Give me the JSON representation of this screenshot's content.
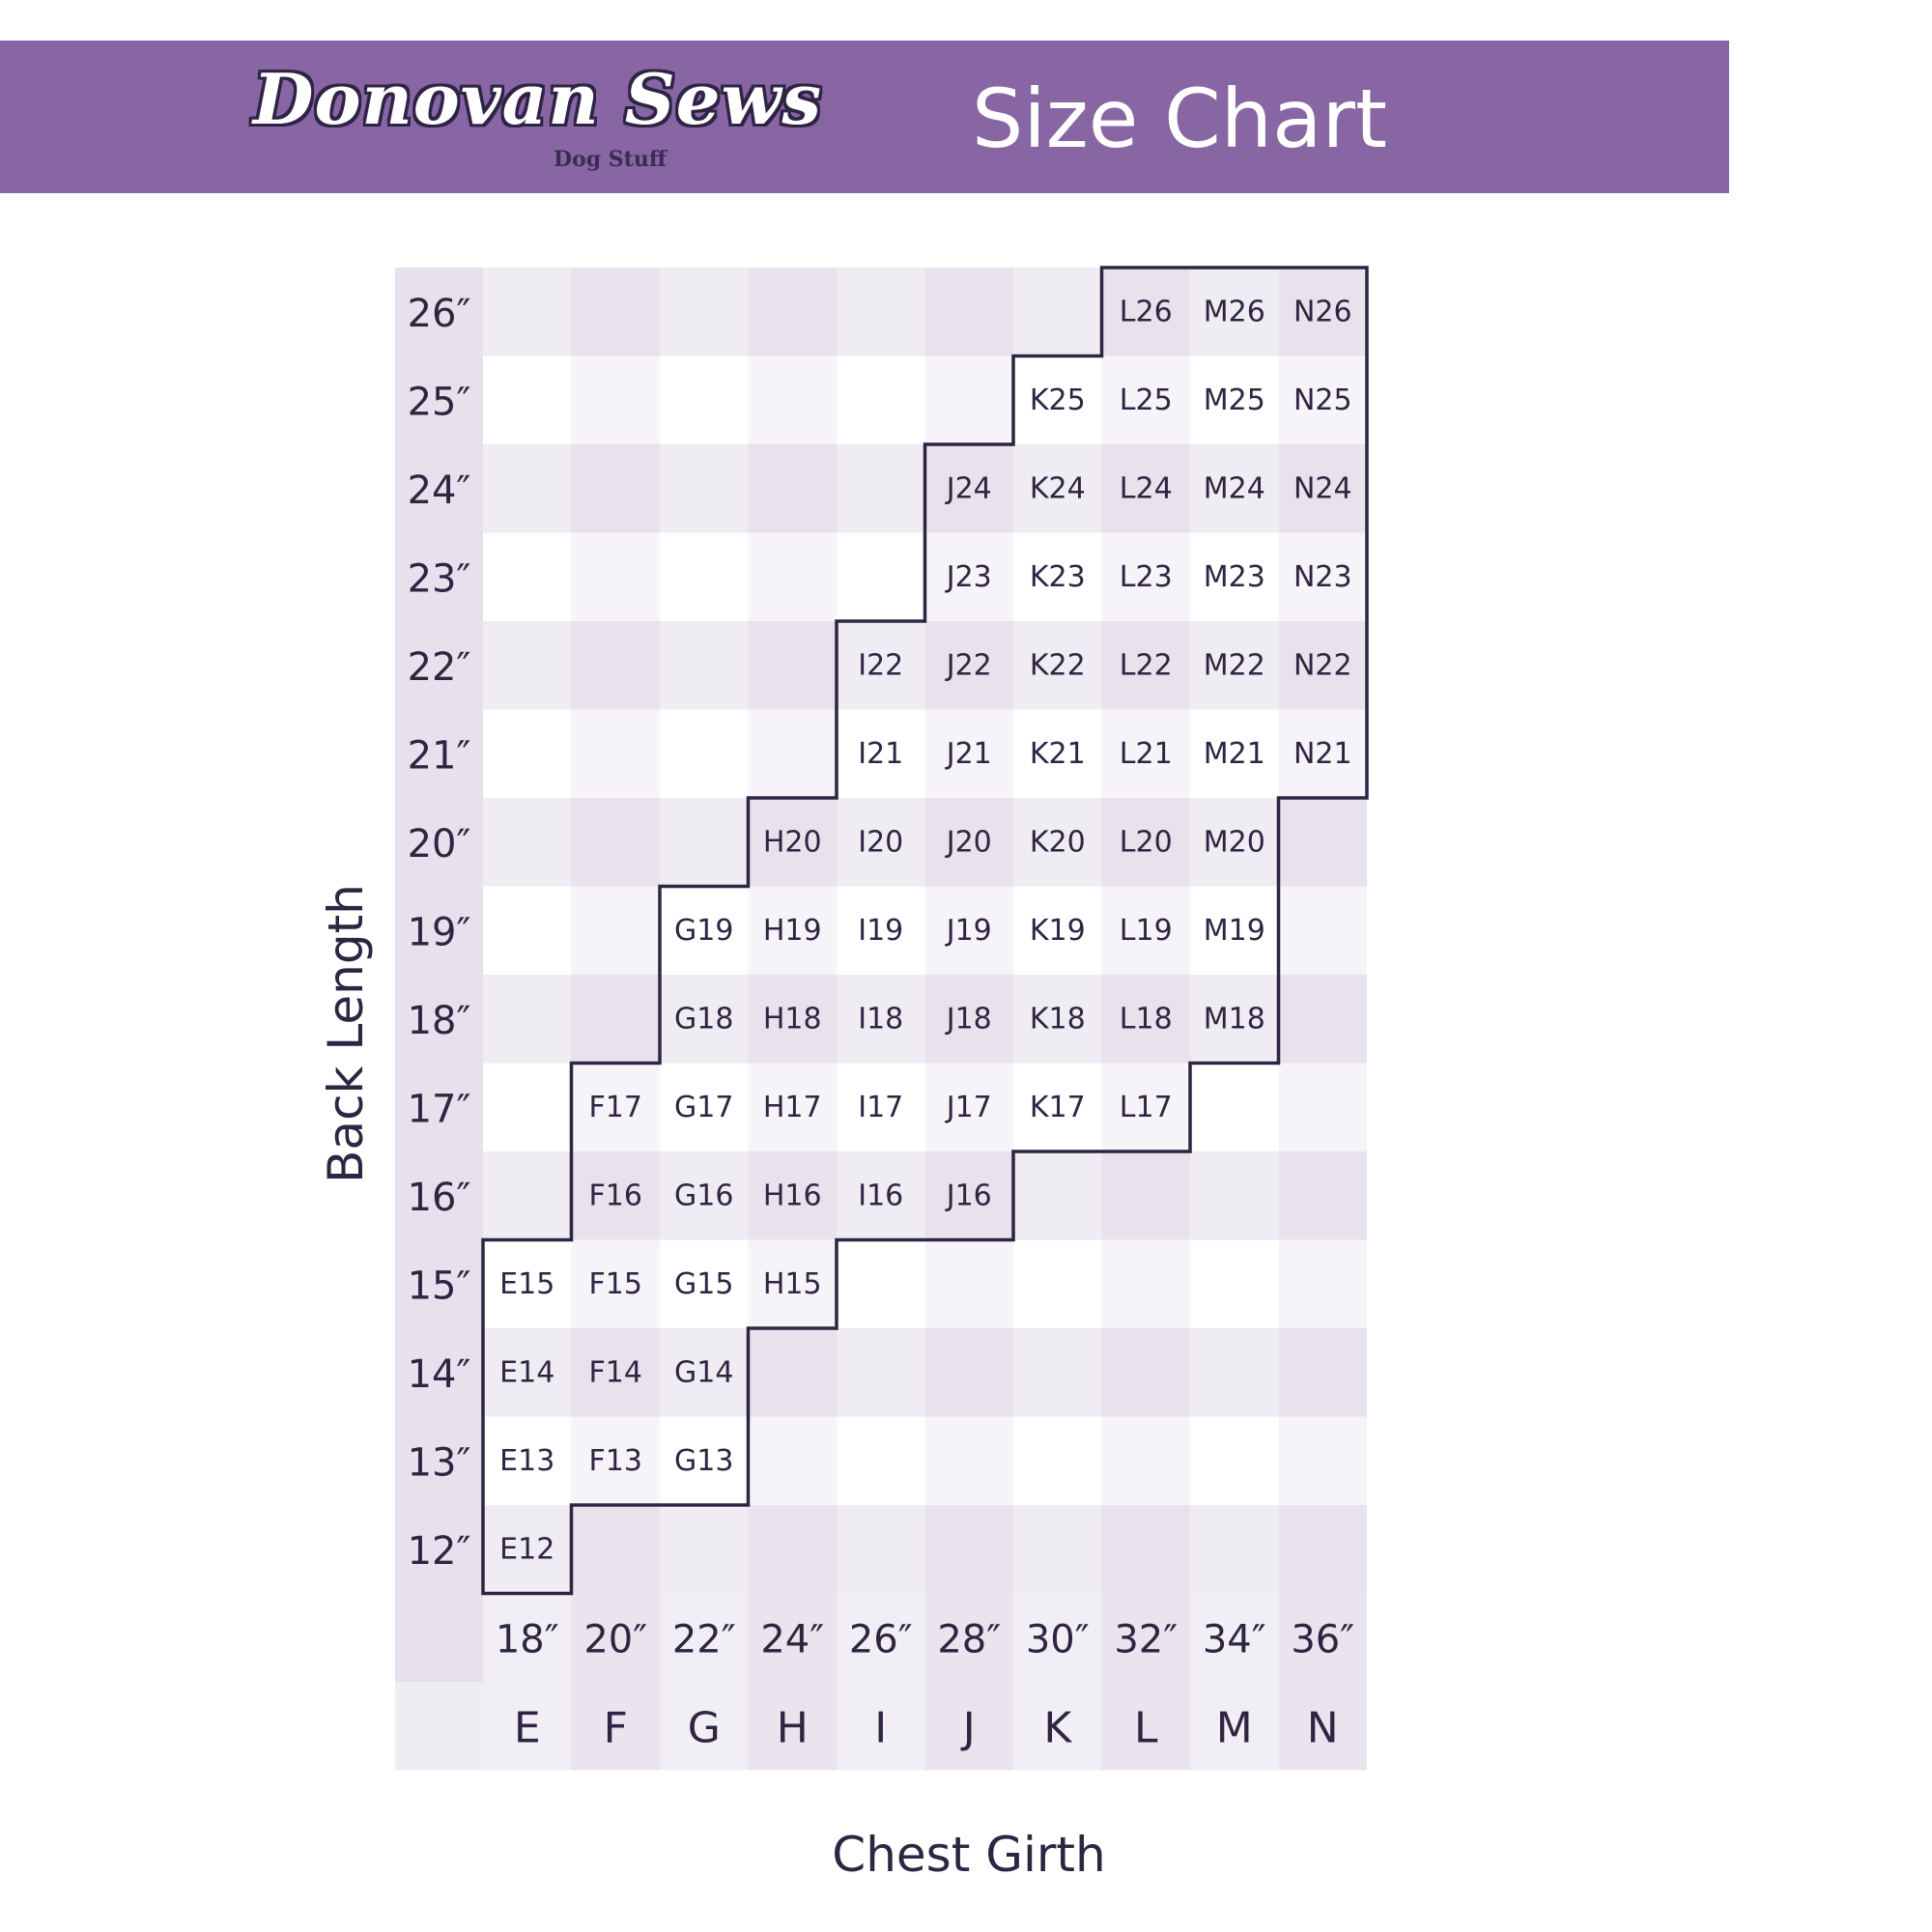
{
  "header": {
    "brand_name": "Donovan Sews",
    "brand_tagline": "Dog Stuff",
    "title": "Size Chart",
    "background_color": "#8766a3"
  },
  "chart_data": {
    "type": "table",
    "title": "Size Chart",
    "ylabel": "Back Length",
    "xlabel": "Chest Girth",
    "columns": [
      "E",
      "F",
      "G",
      "H",
      "I",
      "J",
      "K",
      "L",
      "M",
      "N"
    ],
    "chest_girth_labels": [
      "18″",
      "20″",
      "22″",
      "24″",
      "26″",
      "28″",
      "30″",
      "32″",
      "34″",
      "36″"
    ],
    "back_length_labels": [
      "26″",
      "25″",
      "24″",
      "23″",
      "22″",
      "21″",
      "20″",
      "19″",
      "18″",
      "17″",
      "16″",
      "15″",
      "14″",
      "13″",
      "12″"
    ],
    "back_length_values": [
      26,
      25,
      24,
      23,
      22,
      21,
      20,
      19,
      18,
      17,
      16,
      15,
      14,
      13,
      12
    ],
    "column_back_length_ranges": {
      "E": [
        12,
        15
      ],
      "F": [
        13,
        17
      ],
      "G": [
        13,
        19
      ],
      "H": [
        15,
        20
      ],
      "I": [
        16,
        22
      ],
      "J": [
        16,
        24
      ],
      "K": [
        17,
        25
      ],
      "L": [
        17,
        26
      ],
      "M": [
        18,
        26
      ],
      "N": [
        21,
        26
      ]
    },
    "colors": {
      "band_dark": "#efecf3",
      "band_light": "#ffffff",
      "stripe": "#e6e1ed",
      "outline": "#2e2542",
      "text": "#2e2542"
    }
  }
}
